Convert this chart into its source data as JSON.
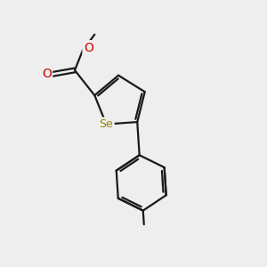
{
  "background_color": "#eeeeee",
  "bond_color": "#1a1a1a",
  "Se_color": "#9a8000",
  "O_color": "#cc0000",
  "text_color": "#1a1a1a",
  "bond_width": 1.6,
  "figsize": [
    3.0,
    3.0
  ],
  "dpi": 100,
  "xlim": [
    0,
    10
  ],
  "ylim": [
    0,
    10
  ]
}
